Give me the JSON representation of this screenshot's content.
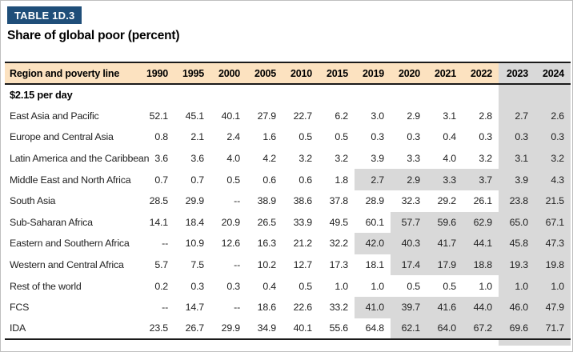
{
  "header": {
    "table_number": "TABLE 1D.3",
    "title": "Share of global poor (percent)"
  },
  "colors": {
    "badge_bg": "#1f4e79",
    "header_row_bg": "#fce2c0",
    "forecast_shading_bg": "#d9d9d9",
    "rule_color": "#1a1a1a"
  },
  "table": {
    "region_column_header": "Region and poverty line",
    "years": [
      "1990",
      "1995",
      "2000",
      "2005",
      "2010",
      "2015",
      "2019",
      "2020",
      "2021",
      "2022",
      "2023",
      "2024"
    ],
    "forecast_start_index": 10,
    "section_label": "$2.15 per day",
    "missing_value_marker": "--",
    "rows": [
      {
        "label": "East Asia and Pacific",
        "values": [
          "52.1",
          "45.1",
          "40.1",
          "27.9",
          "22.7",
          "6.2",
          "3.0",
          "2.9",
          "3.1",
          "2.8",
          "2.7",
          "2.6"
        ],
        "shaded_from": 10
      },
      {
        "label": "Europe and Central Asia",
        "values": [
          "0.8",
          "2.1",
          "2.4",
          "1.6",
          "0.5",
          "0.5",
          "0.3",
          "0.3",
          "0.4",
          "0.3",
          "0.3",
          "0.3"
        ],
        "shaded_from": 10
      },
      {
        "label": "Latin America and the Caribbean",
        "values": [
          "3.6",
          "3.6",
          "4.0",
          "4.2",
          "3.2",
          "3.2",
          "3.9",
          "3.3",
          "4.0",
          "3.2",
          "3.1",
          "3.2"
        ],
        "shaded_from": 10
      },
      {
        "label": "Middle East and North Africa",
        "values": [
          "0.7",
          "0.7",
          "0.5",
          "0.6",
          "0.6",
          "1.8",
          "2.7",
          "2.9",
          "3.3",
          "3.7",
          "3.9",
          "4.3"
        ],
        "shaded_from": 6
      },
      {
        "label": "South Asia",
        "values": [
          "28.5",
          "29.9",
          "--",
          "38.9",
          "38.6",
          "37.8",
          "28.9",
          "32.3",
          "29.2",
          "26.1",
          "23.8",
          "21.5"
        ],
        "shaded_from": 10
      },
      {
        "label": "Sub-Saharan Africa",
        "values": [
          "14.1",
          "18.4",
          "20.9",
          "26.5",
          "33.9",
          "49.5",
          "60.1",
          "57.7",
          "59.6",
          "62.9",
          "65.0",
          "67.1"
        ],
        "shaded_from": 7
      },
      {
        "label": "Eastern and Southern Africa",
        "values": [
          "--",
          "10.9",
          "12.6",
          "16.3",
          "21.2",
          "32.2",
          "42.0",
          "40.3",
          "41.7",
          "44.1",
          "45.8",
          "47.3"
        ],
        "shaded_from": 6
      },
      {
        "label": "Western and Central Africa",
        "values": [
          "5.7",
          "7.5",
          "--",
          "10.2",
          "12.7",
          "17.3",
          "18.1",
          "17.4",
          "17.9",
          "18.8",
          "19.3",
          "19.8"
        ],
        "shaded_from": 7
      },
      {
        "label": "Rest of the world",
        "values": [
          "0.2",
          "0.3",
          "0.3",
          "0.4",
          "0.5",
          "1.0",
          "1.0",
          "0.5",
          "0.5",
          "1.0",
          "1.0",
          "1.0"
        ],
        "shaded_from": 10
      },
      {
        "label": "FCS",
        "values": [
          "--",
          "14.7",
          "--",
          "18.6",
          "22.6",
          "33.2",
          "41.0",
          "39.7",
          "41.6",
          "44.0",
          "46.0",
          "47.9"
        ],
        "shaded_from": 6
      },
      {
        "label": "IDA",
        "values": [
          "23.5",
          "26.7",
          "29.9",
          "34.9",
          "40.1",
          "55.6",
          "64.8",
          "62.1",
          "64.0",
          "67.2",
          "69.6",
          "71.7"
        ],
        "shaded_from": 7
      }
    ]
  }
}
